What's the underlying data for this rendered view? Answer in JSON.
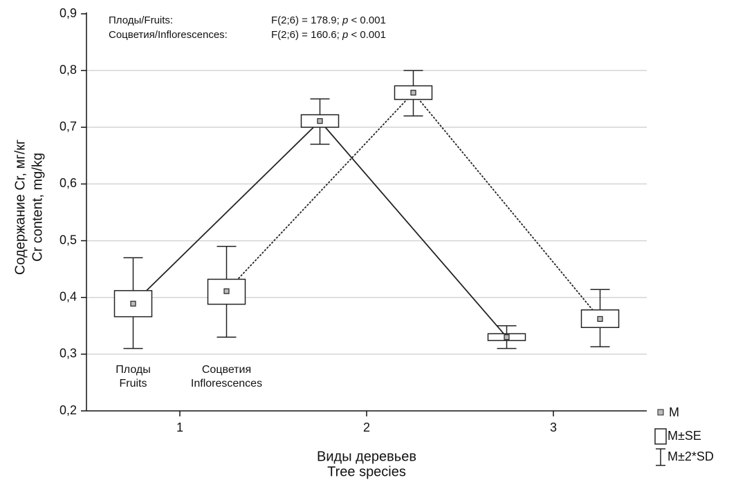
{
  "chart_data": {
    "type": "box",
    "annotations": [
      {
        "label": "Плоды/Fruits:",
        "stat": [
          "F(2;6) = 178.9; ",
          "p",
          " < 0.001"
        ]
      },
      {
        "label": "Соцветия/Inflorescences:",
        "stat": [
          "F(2;6) = 160.6; ",
          "p",
          " < 0.001"
        ]
      }
    ],
    "y_label": [
      "Содержание Cr, мг/кг",
      "Cr content, mg/kg"
    ],
    "x_label": [
      "Виды деревьев",
      "Tree species"
    ],
    "xlim": [
      0.5,
      3.5
    ],
    "xticks": [
      1,
      2,
      3
    ],
    "ylim": [
      0.2,
      0.9
    ],
    "yticks": [
      {
        "value": 0.2,
        "label": "0,2"
      },
      {
        "value": 0.3,
        "label": "0,3"
      },
      {
        "value": 0.4,
        "label": "0,4"
      },
      {
        "value": 0.5,
        "label": "0,5"
      },
      {
        "value": 0.6,
        "label": "0,6"
      },
      {
        "value": 0.7,
        "label": "0,7"
      },
      {
        "value": 0.8,
        "label": "0,8"
      },
      {
        "value": 0.9,
        "label": "0,9"
      }
    ],
    "grid": true,
    "legend": [
      "M",
      "M±SE",
      "M±2*SD"
    ],
    "series": [
      {
        "name": [
          "Плоды",
          "Fruits"
        ],
        "line_style": "solid",
        "x": [
          0.75,
          1.75,
          2.75
        ],
        "values": [
          0.389,
          0.711,
          0.33
        ],
        "se_low": [
          0.366,
          0.7,
          0.324
        ],
        "se_high": [
          0.412,
          0.722,
          0.336
        ],
        "sd_low": [
          0.31,
          0.67,
          0.31
        ],
        "sd_high": [
          0.47,
          0.75,
          0.35
        ]
      },
      {
        "name": [
          "Соцветия",
          "Inflorescences"
        ],
        "line_style": "dotted",
        "x": [
          1.25,
          2.25,
          3.25
        ],
        "values": [
          0.411,
          0.761,
          0.362
        ],
        "se_low": [
          0.388,
          0.749,
          0.347
        ],
        "se_high": [
          0.432,
          0.773,
          0.378
        ],
        "sd_low": [
          0.33,
          0.72,
          0.313
        ],
        "sd_high": [
          0.49,
          0.8,
          0.414
        ]
      }
    ]
  }
}
